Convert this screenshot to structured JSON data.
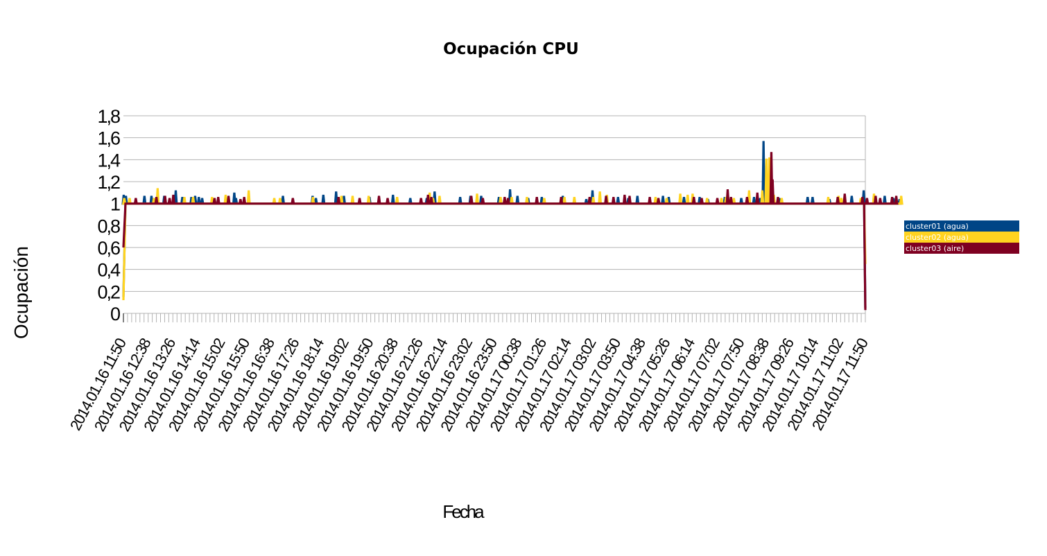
{
  "chart_data": {
    "type": "line",
    "title": "Ocupación CPU",
    "xlabel": "Fecha",
    "ylabel": "Ocupación",
    "ylim": [
      0,
      1.8
    ],
    "yticks": [
      "0",
      "0,2",
      "0,4",
      "0,6",
      "0,8",
      "1",
      "1,2",
      "1,4",
      "1,6",
      "1,8"
    ],
    "grid": true,
    "legend_position": "right",
    "x_tick_labels": [
      "2014.01.16 11:50",
      "2014.01.16 12:38",
      "2014.01.16 13:26",
      "2014.01.16 14:14",
      "2014.01.16 15:02",
      "2014.01.16 15:50",
      "2014.01.16 16:38",
      "2014.01.16 17:26",
      "2014.01.16 18:14",
      "2014.01.16 19:02",
      "2014.01.16 19:50",
      "2014.01.16 20:38",
      "2014.01.16 21:26",
      "2014.01.16 22:14",
      "2014.01.16 23:02",
      "2014.01.16 23:50",
      "2014.01.17 00:38",
      "2014.01.17 01:26",
      "2014.01.17 02:14",
      "2014.01.17 03:02",
      "2014.01.17 03:50",
      "2014.01.17 04:38",
      "2014.01.17 05:26",
      "2014.01.17 06:14",
      "2014.01.17 07:02",
      "2014.01.17 07:50",
      "2014.01.17 08:38",
      "2014.01.17 09:26",
      "2014.01.17 10:14",
      "2014.01.17 11:02",
      "2014.01.17 11:50"
    ],
    "series": [
      {
        "name": "cluster01 (agua)",
        "color": "#004586",
        "baseline": 1,
        "start_value": 0.15,
        "end_value": 0.05,
        "spikes": [
          [
            0.07,
            1.08
          ],
          [
            0.6,
            1.07
          ],
          [
            5.1,
            1.07
          ],
          [
            6.8,
            1.07
          ],
          [
            9.9,
            1.07
          ],
          [
            12.7,
            1.12
          ],
          [
            14.3,
            1.06
          ],
          [
            16.5,
            1.06
          ],
          [
            17.4,
            1.07
          ],
          [
            18.3,
            1.06
          ],
          [
            19.1,
            1.05
          ],
          [
            26.9,
            1.1
          ],
          [
            27.3,
            1.05
          ],
          [
            38.7,
            1.07
          ],
          [
            45.9,
            1.07
          ],
          [
            46.7,
            1.05
          ],
          [
            48.5,
            1.08
          ],
          [
            51.6,
            1.11
          ],
          [
            53.5,
            1.07
          ],
          [
            59.7,
            1.06
          ],
          [
            65.4,
            1.08
          ],
          [
            69.6,
            1.05
          ],
          [
            73.6,
            1.05
          ],
          [
            75.5,
            1.11
          ],
          [
            81.7,
            1.06
          ],
          [
            84.2,
            1.07
          ],
          [
            86.8,
            1.07
          ],
          [
            91.1,
            1.06
          ],
          [
            93.8,
            1.13
          ],
          [
            95.6,
            1.07
          ],
          [
            98.2,
            1.05
          ],
          [
            101.5,
            1.06
          ],
          [
            106.6,
            1.07
          ],
          [
            112.3,
            1.04
          ],
          [
            113.8,
            1.12
          ],
          [
            120.0,
            1.06
          ],
          [
            122.5,
            1.05
          ],
          [
            124.7,
            1.07
          ],
          [
            130.9,
            1.07
          ],
          [
            132.3,
            1.06
          ],
          [
            136.0,
            1.06
          ],
          [
            139.8,
            1.06
          ],
          [
            141.8,
            1.04
          ],
          [
            145.9,
            1.06
          ],
          [
            149.9,
            1.05
          ],
          [
            153.0,
            1.06
          ],
          [
            154.5,
            1.05
          ],
          [
            155.3,
            1.57
          ],
          [
            159.1,
            1.05
          ],
          [
            166.0,
            1.06
          ],
          [
            167.2,
            1.06
          ],
          [
            171.3,
            1.04
          ],
          [
            176.7,
            1.07
          ],
          [
            179.6,
            1.12
          ],
          [
            184.7,
            1.07
          ],
          [
            186.8,
            1.05
          ],
          [
            188.3,
            1.04
          ]
        ]
      },
      {
        "name": "cluster02 (agua)",
        "color": "#ffd320",
        "baseline": 1,
        "start_value": 0.12,
        "end_value": 0.45,
        "spikes": [
          [
            0.2,
            1.05
          ],
          [
            1.5,
            1.05
          ],
          [
            7.4,
            1.05
          ],
          [
            8.3,
            1.14
          ],
          [
            14.8,
            1.06
          ],
          [
            16.9,
            1.06
          ],
          [
            21.5,
            1.06
          ],
          [
            24.8,
            1.08
          ],
          [
            30.4,
            1.12
          ],
          [
            36.6,
            1.05
          ],
          [
            38.0,
            1.05
          ],
          [
            46.0,
            1.06
          ],
          [
            52.9,
            1.07
          ],
          [
            55.6,
            1.07
          ],
          [
            59.5,
            1.07
          ],
          [
            66.4,
            1.06
          ],
          [
            74.3,
            1.1
          ],
          [
            75.1,
            1.05
          ],
          [
            76.7,
            1.07
          ],
          [
            85.8,
            1.09
          ],
          [
            91.5,
            1.06
          ],
          [
            94.2,
            1.06
          ],
          [
            97.9,
            1.06
          ],
          [
            102.1,
            1.05
          ],
          [
            107.0,
            1.06
          ],
          [
            109.4,
            1.06
          ],
          [
            114.0,
            1.06
          ],
          [
            115.6,
            1.11
          ],
          [
            117.3,
            1.08
          ],
          [
            129.1,
            1.06
          ],
          [
            131.8,
            1.05
          ],
          [
            135.1,
            1.09
          ],
          [
            136.9,
            1.08
          ],
          [
            138.1,
            1.09
          ],
          [
            141.6,
            1.05
          ],
          [
            145.1,
            1.05
          ],
          [
            146.2,
            1.06
          ],
          [
            148.1,
            1.05
          ],
          [
            151.8,
            1.12
          ],
          [
            155.0,
            1.12
          ],
          [
            156.0,
            1.41
          ],
          [
            156.7,
            1.42
          ],
          [
            157.8,
            1.08
          ],
          [
            159.7,
            1.05
          ],
          [
            171.0,
            1.06
          ],
          [
            173.5,
            1.07
          ],
          [
            174.2,
            1.05
          ],
          [
            178.9,
            1.05
          ],
          [
            182.1,
            1.09
          ],
          [
            188.7,
            1.07
          ]
        ]
      },
      {
        "name": "cluster03 (aire)",
        "color": "#7e0021",
        "baseline": 1,
        "start_value": 0.6,
        "end_value": 0.03,
        "spikes": [
          [
            3.0,
            1.05
          ],
          [
            8.0,
            1.06
          ],
          [
            10.1,
            1.07
          ],
          [
            11.2,
            1.05
          ],
          [
            12.1,
            1.08
          ],
          [
            22.1,
            1.05
          ],
          [
            23.0,
            1.06
          ],
          [
            25.5,
            1.07
          ],
          [
            28.4,
            1.04
          ],
          [
            29.3,
            1.06
          ],
          [
            41.1,
            1.05
          ],
          [
            52.2,
            1.06
          ],
          [
            57.3,
            1.05
          ],
          [
            62.0,
            1.07
          ],
          [
            64.1,
            1.05
          ],
          [
            72.2,
            1.05
          ],
          [
            73.9,
            1.08
          ],
          [
            74.7,
            1.06
          ],
          [
            84.4,
            1.07
          ],
          [
            87.2,
            1.05
          ],
          [
            92.5,
            1.06
          ],
          [
            93.3,
            1.05
          ],
          [
            100.3,
            1.06
          ],
          [
            106.2,
            1.06
          ],
          [
            113.1,
            1.06
          ],
          [
            117.1,
            1.07
          ],
          [
            118.9,
            1.06
          ],
          [
            121.6,
            1.08
          ],
          [
            122.8,
            1.07
          ],
          [
            127.7,
            1.06
          ],
          [
            129.8,
            1.05
          ],
          [
            138.4,
            1.06
          ],
          [
            140.3,
            1.05
          ],
          [
            144.1,
            1.05
          ],
          [
            146.6,
            1.13
          ],
          [
            147.4,
            1.06
          ],
          [
            151.3,
            1.06
          ],
          [
            153.8,
            1.1
          ],
          [
            157.2,
            1.47
          ],
          [
            157.5,
            1.22
          ],
          [
            158.8,
            1.06
          ],
          [
            173.3,
            1.06
          ],
          [
            175.0,
            1.09
          ],
          [
            179.3,
            1.06
          ],
          [
            180.4,
            1.05
          ],
          [
            182.5,
            1.07
          ],
          [
            183.6,
            1.05
          ],
          [
            186.5,
            1.06
          ],
          [
            187.5,
            1.07
          ]
        ]
      }
    ]
  }
}
